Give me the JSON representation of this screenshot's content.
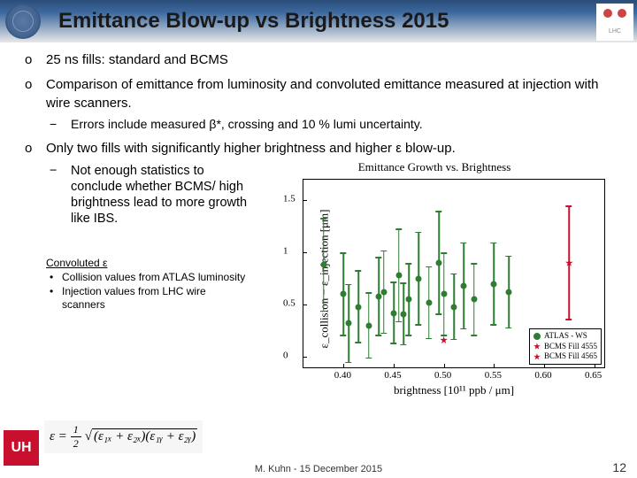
{
  "header": {
    "title": "Emittance Blow-up vs Brightness 2015",
    "corner_label": "LHC"
  },
  "bullets": [
    {
      "text": "25 ns fills: standard and BCMS"
    },
    {
      "text": "Comparison of emittance from luminosity and convoluted emittance measured at injection with wire scanners.",
      "sub": [
        "Errors include measured β*, crossing and 10 % lumi uncertainty."
      ]
    },
    {
      "text": "Only two fills with significantly higher brightness and higher ε blow-up.",
      "sub": [
        "Not enough statistics to conclude whether BCMS/ high brightness lead to more growth like IBS."
      ]
    }
  ],
  "footnote": {
    "heading": "Convoluted ε",
    "items": [
      "Collision values from ATLAS luminosity",
      "Injection values from LHC wire scanners"
    ]
  },
  "formula": {
    "lhs": "ε =",
    "frac_num": "1",
    "frac_den": "2",
    "radicand": "(ε₁ₓ + ε₂ₓ)(ε₁ᵧ + ε₂ᵧ)"
  },
  "uh_logo_text": "UH",
  "footer": "M. Kuhn - 15 December 2015",
  "page_number": "12",
  "chart": {
    "type": "scatter",
    "title": "Emittance Growth vs. Brightness",
    "xlabel": "brightness [10¹¹ ppb / μm]",
    "ylabel": "ε_collision − ε_injection [μm]",
    "xlim": [
      0.36,
      0.66
    ],
    "ylim": [
      -0.1,
      1.7
    ],
    "xticks": [
      0.4,
      0.45,
      0.5,
      0.55,
      0.6,
      0.65
    ],
    "yticks": [
      0,
      0.5,
      1,
      1.5
    ],
    "background_color": "#ffffff",
    "text_color": "#000000",
    "legend": {
      "position": "bottom-right",
      "border_color": "#000000",
      "entries": [
        {
          "label": "ATLAS - WS",
          "marker": "circle",
          "color": "#2e7d32"
        },
        {
          "label": "BCMS Fill 4555",
          "marker": "star",
          "color": "#c8102e"
        },
        {
          "label": "BCMS Fill 4565",
          "marker": "star",
          "color": "#c8102e"
        }
      ]
    },
    "series": [
      {
        "name": "ATLAS-WS",
        "marker": "circle",
        "color": "#2e7d32",
        "error_color": "#2e7d32",
        "marker_size": 7,
        "points": [
          {
            "x": 0.38,
            "y": 0.88,
            "ey": 0.45
          },
          {
            "x": 0.4,
            "y": 0.6,
            "ey": 0.4
          },
          {
            "x": 0.405,
            "y": 0.32,
            "ey": 0.38
          },
          {
            "x": 0.415,
            "y": 0.48,
            "ey": 0.35
          },
          {
            "x": 0.425,
            "y": 0.3,
            "ey": 0.32
          },
          {
            "x": 0.435,
            "y": 0.58,
            "ey": 0.38
          },
          {
            "x": 0.44,
            "y": 0.62,
            "ey": 0.4
          },
          {
            "x": 0.45,
            "y": 0.42,
            "ey": 0.3
          },
          {
            "x": 0.455,
            "y": 0.78,
            "ey": 0.45
          },
          {
            "x": 0.46,
            "y": 0.41,
            "ey": 0.3
          },
          {
            "x": 0.465,
            "y": 0.55,
            "ey": 0.35
          },
          {
            "x": 0.475,
            "y": 0.75,
            "ey": 0.45
          },
          {
            "x": 0.485,
            "y": 0.52,
            "ey": 0.35
          },
          {
            "x": 0.495,
            "y": 0.9,
            "ey": 0.5
          },
          {
            "x": 0.5,
            "y": 0.6,
            "ey": 0.4
          },
          {
            "x": 0.51,
            "y": 0.48,
            "ey": 0.32
          },
          {
            "x": 0.52,
            "y": 0.68,
            "ey": 0.42
          },
          {
            "x": 0.53,
            "y": 0.55,
            "ey": 0.35
          },
          {
            "x": 0.55,
            "y": 0.7,
            "ey": 0.4
          },
          {
            "x": 0.565,
            "y": 0.62,
            "ey": 0.35
          }
        ]
      },
      {
        "name": "BCMS-4555",
        "marker": "star",
        "color": "#c8102e",
        "error_color": "#c8102e",
        "marker_size": 9,
        "points": [
          {
            "x": 0.5,
            "y": 0.16,
            "ey": 0.0
          }
        ]
      },
      {
        "name": "BCMS-4565",
        "marker": "star",
        "color": "#c8102e",
        "error_color": "#c8102e",
        "marker_size": 9,
        "points": [
          {
            "x": 0.625,
            "y": 0.9,
            "ey": 0.55
          }
        ]
      }
    ]
  }
}
